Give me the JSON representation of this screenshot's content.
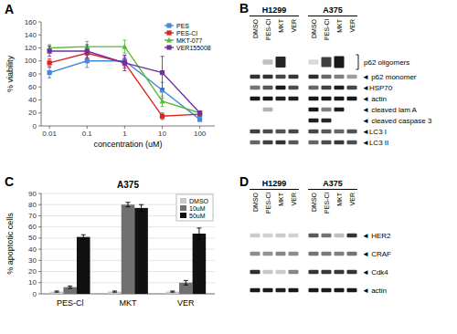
{
  "chart_data": [
    {
      "type": "line",
      "title": "A",
      "xlabel": "concentration (uM)",
      "ylabel": "% viability",
      "log": "x",
      "x": [
        0.01,
        0.1,
        1,
        10,
        100
      ],
      "xlim": [
        0.006,
        250
      ],
      "xticks": [
        0.01,
        0.1,
        1,
        10,
        100
      ],
      "ylim": [
        0,
        160
      ],
      "yticks": [
        0,
        20,
        40,
        60,
        80,
        100,
        120,
        140,
        160
      ],
      "legend": "upper right",
      "series": [
        {
          "name": "PES",
          "color": "#4488DD",
          "marker": "square",
          "values": [
            82,
            100,
            100,
            55,
            10
          ],
          "yerr": [
            8,
            10,
            8,
            12,
            3
          ]
        },
        {
          "name": "PES-Cl",
          "color": "#DD2222",
          "marker": "square",
          "values": [
            97,
            112,
            97,
            15,
            18
          ],
          "yerr": [
            6,
            8,
            8,
            5,
            3
          ]
        },
        {
          "name": "MKT-077",
          "color": "#55BB33",
          "marker": "triangle",
          "values": [
            120,
            122,
            122,
            38,
            20
          ],
          "yerr": [
            5,
            8,
            10,
            8,
            3
          ]
        },
        {
          "name": "VER155008",
          "color": "#7030A0",
          "marker": "square",
          "values": [
            115,
            115,
            97,
            82,
            20
          ],
          "yerr": [
            8,
            10,
            12,
            25,
            3
          ]
        }
      ]
    },
    {
      "type": "blot",
      "title": "B",
      "groups": [
        {
          "name": "H1299",
          "categories": [
            "DMSO",
            "PES-Cl",
            "MKT",
            "VER"
          ]
        },
        {
          "name": "A375",
          "categories": [
            "DMSO",
            "PES-Cl",
            "MKT",
            "VER"
          ]
        }
      ],
      "series": [
        {
          "name": "p62 oligomers",
          "marker": "bracket",
          "values": [
            0.0,
            0.25,
            0.85,
            0.0,
            0.15,
            0.75,
            0.9,
            0.0
          ],
          "sizes": [
            0.0,
            0.22,
            0.5,
            0.0,
            0.22,
            0.45,
            0.55,
            0.0
          ]
        },
        {
          "name": "◄ p62 monomer",
          "values": [
            0.8,
            0.8,
            0.72,
            0.78,
            0.82,
            0.6,
            0.5,
            0.38
          ]
        },
        {
          "name": "◄HSP70",
          "values": [
            0.55,
            0.65,
            0.9,
            0.7,
            0.6,
            0.75,
            0.88,
            0.72
          ]
        },
        {
          "name": "◄ actin",
          "values": [
            0.9,
            0.9,
            0.88,
            0.88,
            0.9,
            0.9,
            0.9,
            0.9
          ]
        },
        {
          "name": "◄ cleaved lam A",
          "values": [
            0.0,
            0.3,
            0.0,
            0.0,
            0.9,
            0.5,
            0.88,
            0.0
          ]
        },
        {
          "name": "◄ cleaved caspase 3",
          "values": [
            0.0,
            0.0,
            0.0,
            0.0,
            0.88,
            0.85,
            0.0,
            0.0
          ]
        },
        {
          "name": "◄LC3 I",
          "values": [
            0.75,
            0.7,
            0.68,
            0.72,
            0.72,
            0.65,
            0.6,
            0.68
          ]
        },
        {
          "name": "◄LC3 II",
          "values": [
            0.6,
            0.75,
            0.8,
            0.65,
            0.6,
            0.7,
            0.78,
            0.7
          ]
        }
      ]
    },
    {
      "type": "bar",
      "title": "A375",
      "annotations": [
        "C"
      ],
      "ylabel": "% apoptotic cells",
      "categories": [
        "PES-Cl",
        "MKT",
        "VER"
      ],
      "ylim": [
        0,
        90
      ],
      "yticks": [
        0,
        10,
        20,
        30,
        40,
        50,
        60,
        70,
        80,
        90
      ],
      "grid": true,
      "legend": "upper right",
      "series": [
        {
          "name": "DMSO",
          "color": "#C8C8C8",
          "values": [
            2,
            2,
            2
          ],
          "yerr": [
            0.5,
            0.5,
            0.5
          ]
        },
        {
          "name": "10uM",
          "color": "#707070",
          "values": [
            6,
            80,
            10
          ],
          "yerr": [
            1,
            2,
            2
          ]
        },
        {
          "name": "50uM",
          "color": "#111111",
          "values": [
            51,
            77,
            54
          ],
          "yerr": [
            2,
            3,
            5
          ]
        }
      ]
    },
    {
      "type": "blot",
      "title": "D",
      "groups": [
        {
          "name": "H1299",
          "categories": [
            "DMSO",
            "PES-Cl",
            "MKT",
            "VER"
          ]
        },
        {
          "name": "A375",
          "categories": [
            "DMSO",
            "PES-Cl",
            "MKT",
            "VER"
          ]
        }
      ],
      "series": [
        {
          "name": "◄ HER2",
          "values": [
            0.2,
            0.18,
            0.2,
            0.18,
            0.65,
            0.55,
            0.25,
            0.8
          ]
        },
        {
          "name": "◄ CRAF",
          "values": [
            0.45,
            0.42,
            0.48,
            0.45,
            0.55,
            0.52,
            0.5,
            0.55
          ]
        },
        {
          "name": "◄ Cdk4",
          "values": [
            0.82,
            0.22,
            0.2,
            0.48,
            0.8,
            0.78,
            0.78,
            0.8
          ]
        },
        {
          "name": "◄ actin",
          "values": [
            0.9,
            0.9,
            0.88,
            0.9,
            0.9,
            0.9,
            0.9,
            0.9
          ]
        }
      ]
    }
  ]
}
